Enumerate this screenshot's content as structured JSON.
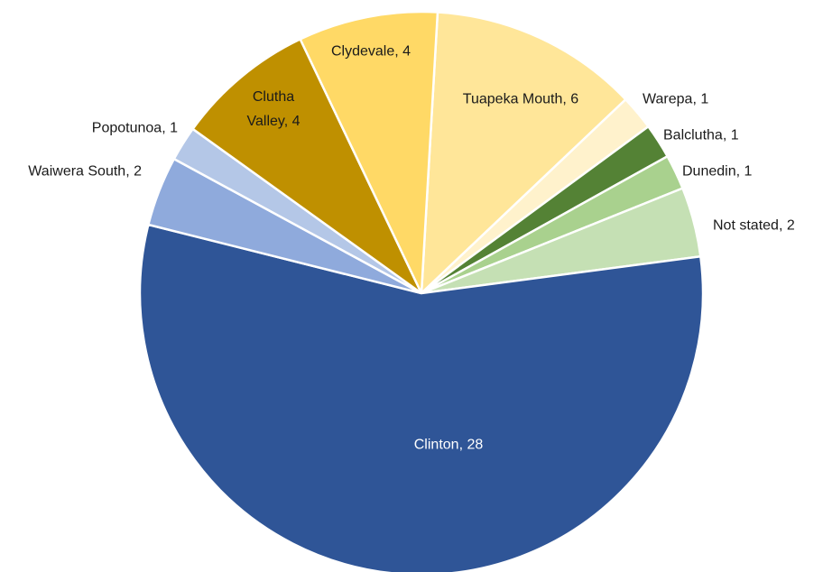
{
  "chart_data": {
    "type": "pie",
    "categories": [
      "Tuapeka Mouth",
      "Warepa",
      "Balclutha",
      "Dunedin",
      "Not stated",
      "Clinton",
      "Waiwera South",
      "Popotunoa",
      "Clutha Valley",
      "Clydevale"
    ],
    "values": [
      6,
      1,
      1,
      1,
      2,
      28,
      2,
      1,
      4,
      4
    ],
    "colors": [
      "#ffe699",
      "#fff2cc",
      "#548235",
      "#a9d18e",
      "#c5e0b4",
      "#2f5597",
      "#8faadc",
      "#b4c7e7",
      "#bf9000",
      "#ffd966"
    ]
  }
}
